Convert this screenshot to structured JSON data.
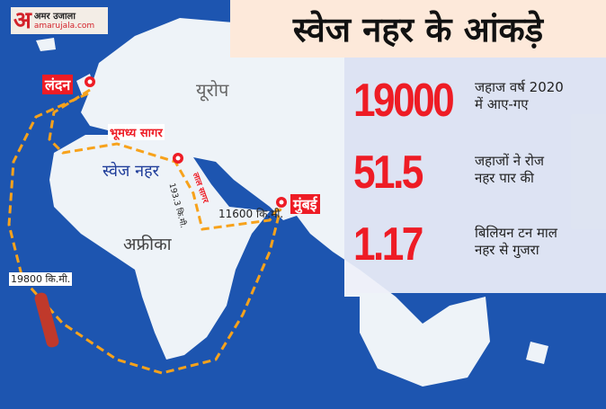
{
  "logo": {
    "mark": "अ",
    "hindi": "अमर उजाला",
    "site": "amarujala.com"
  },
  "title": "स्वेज नहर के आंकड़े",
  "stats": [
    {
      "value": "19000",
      "text1": "जहाज वर्ष 2020",
      "text2": "में आए-गए"
    },
    {
      "value": "51.5",
      "text1": "जहाजों ने रोज",
      "text2": "नहर पार की"
    },
    {
      "value": "1.17",
      "text1": "बिलियन टन माल",
      "text2": "नहर से गुजरा"
    }
  ],
  "map": {
    "london": "लंदन",
    "europe": "यूरोप",
    "mediterranean": "भूमध्य सागर",
    "suez": "स्वेज नहर",
    "red_sea": "लाल सागर",
    "suez_length": "193.3 कि.मी.",
    "suez_mumbai": "11600 कि.मी.",
    "mumbai": "मुंबई",
    "africa": "अफ्रीका",
    "cape_route": "19800 कि.मी."
  },
  "colors": {
    "ocean": "#1d55b0",
    "land": "#eef3f8",
    "accent": "#ee1c25",
    "route": "#f7a21b",
    "title_bg": "#fde9da"
  }
}
